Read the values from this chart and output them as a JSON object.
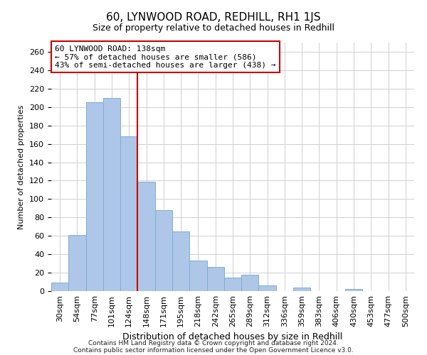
{
  "title": "60, LYNWOOD ROAD, REDHILL, RH1 1JS",
  "subtitle": "Size of property relative to detached houses in Redhill",
  "xlabel": "Distribution of detached houses by size in Redhill",
  "ylabel": "Number of detached properties",
  "bar_labels": [
    "30sqm",
    "54sqm",
    "77sqm",
    "101sqm",
    "124sqm",
    "148sqm",
    "171sqm",
    "195sqm",
    "218sqm",
    "242sqm",
    "265sqm",
    "289sqm",
    "312sqm",
    "336sqm",
    "359sqm",
    "383sqm",
    "406sqm",
    "430sqm",
    "453sqm",
    "477sqm",
    "500sqm"
  ],
  "bar_values": [
    9,
    61,
    205,
    210,
    168,
    119,
    88,
    65,
    33,
    26,
    15,
    18,
    6,
    0,
    4,
    0,
    0,
    2,
    0,
    0,
    0
  ],
  "bar_color": "#aec6e8",
  "bar_edge_color": "#7bafd4",
  "vline_x": 4.5,
  "vline_color": "#cc0000",
  "annotation_title": "60 LYNWOOD ROAD: 138sqm",
  "annotation_line1": "← 57% of detached houses are smaller (586)",
  "annotation_line2": "43% of semi-detached houses are larger (438) →",
  "box_facecolor": "#ffffff",
  "box_edgecolor": "#cc0000",
  "ylim": [
    0,
    270
  ],
  "yticks": [
    0,
    20,
    40,
    60,
    80,
    100,
    120,
    140,
    160,
    180,
    200,
    220,
    240,
    260
  ],
  "footnote1": "Contains HM Land Registry data © Crown copyright and database right 2024.",
  "footnote2": "Contains public sector information licensed under the Open Government Licence v3.0.",
  "title_fontsize": 11,
  "subtitle_fontsize": 9,
  "xlabel_fontsize": 9,
  "ylabel_fontsize": 8,
  "tick_fontsize": 8,
  "annot_fontsize": 8
}
